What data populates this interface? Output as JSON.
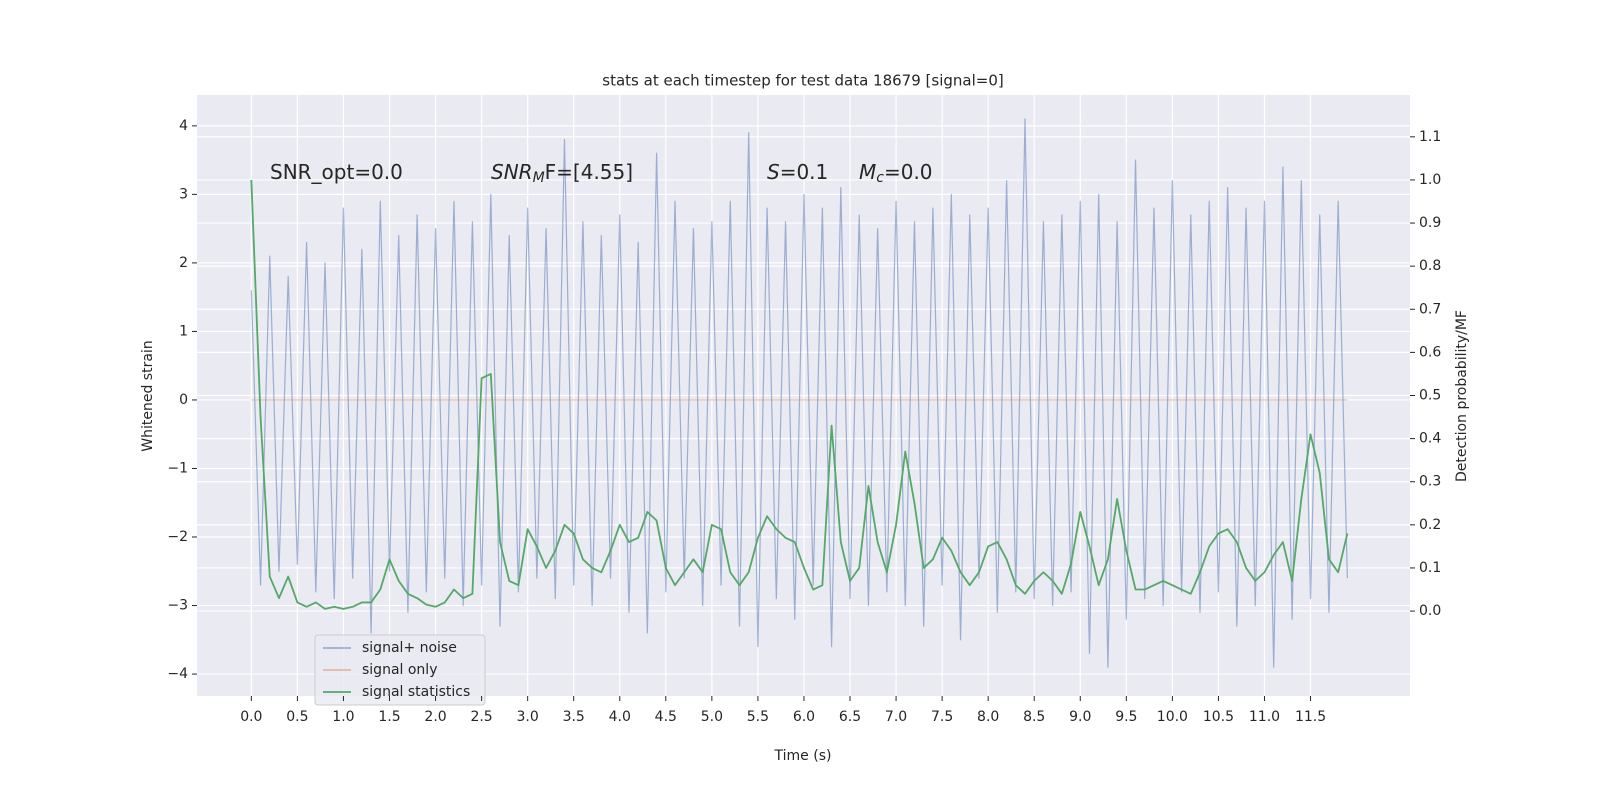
{
  "chart_data": {
    "type": "line",
    "title": "stats at each timestep for test data 18679 [signal=0]",
    "x_label": "Time (s)",
    "y_label": "Whitened strain",
    "y2_label": "Detection probability/MF",
    "annotations": [
      [
        "SNR_opt=0.0"
      ],
      [
        "SNR",
        "M",
        "F=[4.55]"
      ],
      [
        "S",
        "=0.1"
      ],
      [
        "M",
        "c",
        "=0.0"
      ]
    ],
    "grid": true,
    "legend": "lower left",
    "xlim": [
      -0.59,
      12.58
    ],
    "ylim": [
      -4.32,
      4.45
    ],
    "y2lim": [
      -0.197,
      1.197
    ],
    "xticks": [
      {
        "value": 0,
        "label": "0.0"
      },
      0.5,
      {
        "value": 1,
        "label": "1.0"
      },
      1.5,
      {
        "value": 2,
        "label": "2.0"
      },
      2.5,
      {
        "value": 3,
        "label": "3.0"
      },
      3.5,
      {
        "value": 4,
        "label": "4.0"
      },
      4.5,
      {
        "value": 5,
        "label": "5.0"
      },
      5.5,
      {
        "value": 6,
        "label": "6.0"
      },
      6.5,
      {
        "value": 7,
        "label": "7.0"
      },
      7.5,
      {
        "value": 8,
        "label": "8.0"
      },
      8.5,
      {
        "value": 9,
        "label": "9.0"
      },
      9.5,
      {
        "value": 10,
        "label": "10.0"
      },
      10.5,
      {
        "value": 11,
        "label": "11.0"
      },
      11.5
    ],
    "yticks": [
      {
        "value": -4,
        "label": "−4"
      },
      {
        "value": -3,
        "label": "−3"
      },
      {
        "value": -2,
        "label": "−2"
      },
      {
        "value": -1,
        "label": "−1"
      },
      0,
      1,
      2,
      3,
      4
    ],
    "y2ticks": [
      {
        "value": 0,
        "label": "0.0"
      },
      0.1,
      0.2,
      0.3,
      0.4,
      0.5,
      0.6,
      0.7,
      0.8,
      0.9,
      {
        "value": 1,
        "label": "1.0"
      },
      1.1
    ],
    "x": [
      0,
      0.1,
      0.2,
      0.3,
      0.4,
      0.5,
      0.6,
      0.7,
      0.8,
      0.9,
      1,
      1.1,
      1.2,
      1.3,
      1.4,
      1.5,
      1.6,
      1.7,
      1.8,
      1.9,
      2,
      2.1,
      2.2,
      2.3,
      2.4,
      2.5,
      2.6,
      2.7,
      2.8,
      2.9,
      3,
      3.1,
      3.2,
      3.3,
      3.4,
      3.5,
      3.6,
      3.7,
      3.8,
      3.9,
      4,
      4.1,
      4.2,
      4.3,
      4.4,
      4.5,
      4.6,
      4.7,
      4.8,
      4.9,
      5,
      5.1,
      5.2,
      5.3,
      5.4,
      5.5,
      5.6,
      5.7,
      5.8,
      5.9,
      6,
      6.1,
      6.2,
      6.3,
      6.4,
      6.5,
      6.6,
      6.7,
      6.8,
      6.9,
      7,
      7.1,
      7.2,
      7.3,
      7.4,
      7.5,
      7.6,
      7.7,
      7.8,
      7.9,
      8,
      8.1,
      8.2,
      8.3,
      8.4,
      8.5,
      8.6,
      8.7,
      8.8,
      8.9,
      9,
      9.1,
      9.2,
      9.3,
      9.4,
      9.5,
      9.6,
      9.7,
      9.8,
      9.9,
      10,
      10.1,
      10.2,
      10.3,
      10.4,
      10.5,
      10.6,
      10.7,
      10.8,
      10.9,
      11,
      11.1,
      11.2,
      11.3,
      11.4,
      11.5,
      11.6,
      11.7,
      11.8,
      11.9
    ],
    "series": [
      {
        "name": "signal+ noise",
        "color": "#4c72b0",
        "opacity": 0.5,
        "axis": "y",
        "values": [
          1.6,
          -2.7,
          2.1,
          -2.5,
          1.8,
          -2.4,
          2.3,
          -2.8,
          2.0,
          -2.9,
          2.8,
          -2.6,
          2.2,
          -3.4,
          2.9,
          -2.5,
          2.4,
          -3.1,
          2.7,
          -2.8,
          2.5,
          -2.6,
          2.9,
          -3.0,
          2.6,
          -2.7,
          3.0,
          -3.3,
          2.4,
          -2.8,
          2.8,
          -2.6,
          2.5,
          -2.9,
          3.8,
          -2.7,
          2.6,
          -3.0,
          2.4,
          -2.6,
          2.7,
          -3.1,
          2.3,
          -3.4,
          3.6,
          -2.8,
          2.9,
          -2.6,
          2.5,
          -3.0,
          2.6,
          -2.7,
          2.9,
          -3.3,
          3.9,
          -3.6,
          2.8,
          -2.9,
          2.6,
          -3.2,
          3.0,
          -2.7,
          2.8,
          -3.6,
          3.1,
          -2.9,
          2.7,
          -3.0,
          2.5,
          -2.8,
          2.9,
          -3.0,
          2.6,
          -3.3,
          2.8,
          -2.7,
          3.0,
          -3.5,
          2.7,
          -2.6,
          2.8,
          -3.1,
          3.2,
          -2.8,
          4.1,
          -2.9,
          2.6,
          -3.0,
          2.7,
          -2.8,
          2.9,
          -3.7,
          3.0,
          -3.9,
          2.6,
          -3.2,
          3.5,
          -2.9,
          2.8,
          -3.0,
          3.2,
          -2.8,
          2.7,
          -3.1,
          2.9,
          -2.8,
          3.1,
          -3.3,
          2.8,
          -3.0,
          2.9,
          -3.9,
          3.4,
          -3.2,
          3.2,
          -2.9,
          2.7,
          -3.1,
          2.9,
          -2.6
        ]
      },
      {
        "name": "signal only",
        "color": "#dd8452",
        "opacity": 0.5,
        "axis": "y",
        "values": [
          0,
          0,
          0,
          0,
          0,
          0,
          0,
          0,
          0,
          0,
          0,
          0,
          0,
          0,
          0,
          0,
          0,
          0,
          0,
          0,
          0,
          0,
          0,
          0,
          0,
          0,
          0,
          0,
          0,
          0,
          0,
          0,
          0,
          0,
          0,
          0,
          0,
          0,
          0,
          0,
          0,
          0,
          0,
          0,
          0,
          0,
          0,
          0,
          0,
          0,
          0,
          0,
          0,
          0,
          0,
          0,
          0,
          0,
          0,
          0,
          0,
          0,
          0,
          0,
          0,
          0,
          0,
          0,
          0,
          0,
          0,
          0,
          0,
          0,
          0,
          0,
          0,
          0,
          0,
          0,
          0,
          0,
          0,
          0,
          0,
          0,
          0,
          0,
          0,
          0,
          0,
          0,
          0,
          0,
          0,
          0,
          0,
          0,
          0,
          0,
          0,
          0,
          0,
          0,
          0,
          0,
          0,
          0,
          0,
          0,
          0,
          0,
          0,
          0,
          0,
          0,
          0,
          0,
          0,
          0
        ]
      },
      {
        "name": "signal statistics",
        "color": "#55a868",
        "opacity": 1,
        "axis": "y2",
        "values": [
          1.0,
          0.45,
          0.08,
          0.03,
          0.08,
          0.02,
          0.01,
          0.02,
          0.005,
          0.01,
          0.005,
          0.01,
          0.02,
          0.02,
          0.05,
          0.12,
          0.07,
          0.04,
          0.03,
          0.015,
          0.01,
          0.02,
          0.05,
          0.03,
          0.04,
          0.54,
          0.55,
          0.16,
          0.07,
          0.06,
          0.19,
          0.15,
          0.1,
          0.14,
          0.2,
          0.18,
          0.12,
          0.1,
          0.09,
          0.14,
          0.2,
          0.16,
          0.17,
          0.23,
          0.21,
          0.1,
          0.06,
          0.09,
          0.12,
          0.09,
          0.2,
          0.19,
          0.09,
          0.06,
          0.09,
          0.17,
          0.22,
          0.19,
          0.17,
          0.16,
          0.1,
          0.05,
          0.06,
          0.43,
          0.16,
          0.07,
          0.1,
          0.29,
          0.16,
          0.09,
          0.2,
          0.37,
          0.25,
          0.1,
          0.12,
          0.17,
          0.14,
          0.09,
          0.06,
          0.09,
          0.15,
          0.16,
          0.12,
          0.06,
          0.04,
          0.07,
          0.09,
          0.07,
          0.04,
          0.11,
          0.23,
          0.15,
          0.06,
          0.12,
          0.26,
          0.14,
          0.05,
          0.05,
          0.06,
          0.07,
          0.06,
          0.05,
          0.04,
          0.09,
          0.15,
          0.18,
          0.19,
          0.16,
          0.1,
          0.07,
          0.09,
          0.13,
          0.16,
          0.07,
          0.26,
          0.41,
          0.32,
          0.12,
          0.09,
          0.18
        ]
      }
    ]
  }
}
